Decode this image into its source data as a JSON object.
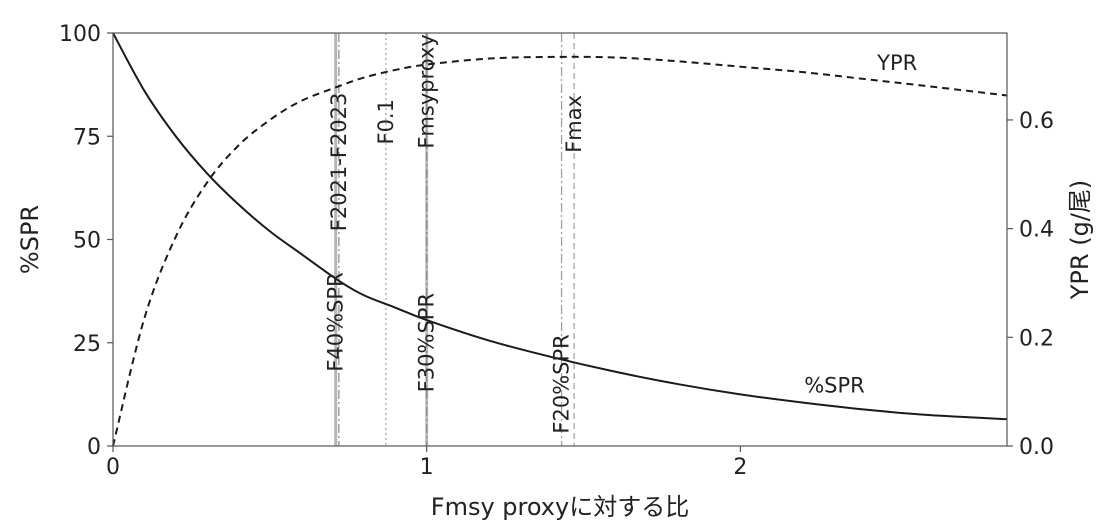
{
  "chart_data": {
    "type": "line",
    "xlabel": "Fmsy proxyに対する比",
    "ylabel_left": "%SPR",
    "ylabel_right": "YPR (g/尾)",
    "xlim": [
      0,
      2.85
    ],
    "ylim_left": [
      0,
      100
    ],
    "ylim_right": [
      0,
      0.76
    ],
    "x_ticks": [
      0,
      1,
      2
    ],
    "x_tick_labels": [
      "0",
      "1",
      "2"
    ],
    "y_left_ticks": [
      0,
      25,
      50,
      75,
      100
    ],
    "y_left_tick_labels": [
      "0",
      "25",
      "50",
      "75",
      "100"
    ],
    "y_right_ticks": [
      0.0,
      0.2,
      0.4,
      0.6
    ],
    "y_right_tick_labels": [
      "0.0",
      "0.2",
      "0.4",
      "0.6"
    ],
    "grid": false,
    "series": [
      {
        "name": "%SPR",
        "axis": "left",
        "style": "solid",
        "x": [
          0,
          0.1,
          0.2,
          0.3,
          0.4,
          0.5,
          0.6,
          0.72,
          0.8,
          0.9,
          1.0,
          1.2,
          1.4,
          1.6,
          1.8,
          2.0,
          2.2,
          2.4,
          2.6,
          2.85
        ],
        "y": [
          100,
          86,
          75,
          66,
          58.5,
          52,
          46.5,
          40,
          36.5,
          33.5,
          30.5,
          25.5,
          21.5,
          18,
          15,
          12.5,
          10.5,
          8.8,
          7.5,
          6.5
        ]
      },
      {
        "name": "YPR",
        "axis": "right",
        "style": "dashed",
        "x": [
          0,
          0.1,
          0.2,
          0.3,
          0.4,
          0.5,
          0.6,
          0.72,
          0.8,
          0.9,
          1.0,
          1.2,
          1.4,
          1.6,
          1.8,
          2.0,
          2.2,
          2.4,
          2.6,
          2.85
        ],
        "y": [
          0.0,
          0.235,
          0.385,
          0.485,
          0.553,
          0.6,
          0.635,
          0.662,
          0.678,
          0.692,
          0.702,
          0.713,
          0.716,
          0.715,
          0.708,
          0.698,
          0.688,
          0.675,
          0.662,
          0.645
        ]
      }
    ],
    "reference_lines": [
      {
        "name": "F40%SPR",
        "x": 0.71,
        "style": "solid-gray",
        "color": "#b5b5b5"
      },
      {
        "name": "F2021-F2023",
        "x": 0.72,
        "style": "dashdot",
        "color": "#909090"
      },
      {
        "name": "F0.1",
        "x": 0.87,
        "style": "dotted",
        "color": "#a8a8a8"
      },
      {
        "name": "F30%SPR",
        "x": 1.0,
        "style": "solid-gray",
        "color": "#bdbdbd"
      },
      {
        "name": "Fmsyproxy",
        "x": 1.0,
        "style": "dashdot",
        "color": "#8c8c8c"
      },
      {
        "name": "F20%SPR",
        "x": 1.43,
        "style": "dashdot",
        "color": "#a0a0a0"
      },
      {
        "name": "Fmax",
        "x": 1.47,
        "style": "dashed",
        "color": "#a6a6a6"
      }
    ],
    "annotations": [
      {
        "text": "F40%SPR",
        "x": 0.71,
        "anchor_y_left": 18
      },
      {
        "text": "F2021-F2023",
        "x": 0.72,
        "anchor_y_left": 52
      },
      {
        "text": "F0.1",
        "x": 0.87,
        "anchor_y_left": 73
      },
      {
        "text": "Fmsyproxy",
        "x": 1.0,
        "anchor_y_left": 72
      },
      {
        "text": "F30%SPR",
        "x": 1.0,
        "anchor_y_left": 13
      },
      {
        "text": "F20%SPR",
        "x": 1.43,
        "anchor_y_left": 3
      },
      {
        "text": "Fmax",
        "x": 1.47,
        "anchor_y_left": 71
      },
      {
        "text": "YPR",
        "x": 2.5,
        "anchor_y_left": 91
      },
      {
        "text": "%SPR",
        "x": 2.3,
        "anchor_y_left": 13
      }
    ],
    "colors": {
      "curve": "#1a1a1a",
      "axis": "#555555",
      "text": "#222222"
    }
  }
}
